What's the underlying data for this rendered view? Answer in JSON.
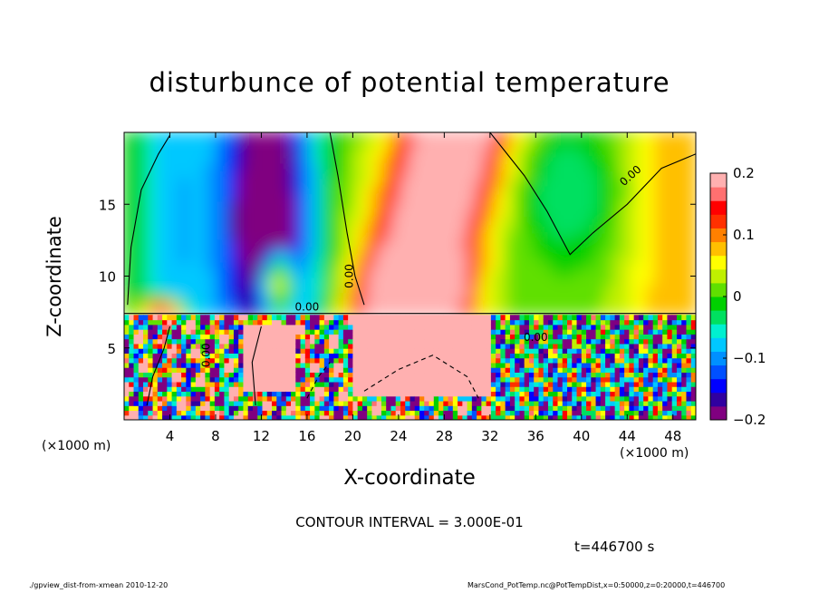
{
  "chart_data": {
    "type": "heatmap",
    "title": "disturbunce of potential temperature",
    "xlabel": "X-coordinate",
    "ylabel": "Z-coordinate",
    "x_unit_label": "(×1000 m)",
    "xlim": [
      0,
      50
    ],
    "ylim": [
      0,
      20
    ],
    "x_ticks": [
      "4",
      "8",
      "12",
      "16",
      "20",
      "24",
      "28",
      "32",
      "36",
      "40",
      "44",
      "48"
    ],
    "x_tick_values": [
      4,
      8,
      12,
      16,
      20,
      24,
      28,
      32,
      36,
      40,
      44,
      48
    ],
    "y_ticks": [
      "5",
      "10",
      "15"
    ],
    "y_tick_values": [
      5,
      10,
      15
    ],
    "colorbar": {
      "min": -0.2,
      "max": 0.2,
      "ticks": [
        "0.2",
        "0.1",
        "0",
        "−0.1",
        "−0.2"
      ],
      "tick_values": [
        0.2,
        0.1,
        0,
        -0.1,
        -0.2
      ],
      "colors": [
        "#800080",
        "#3000a0",
        "#0000ff",
        "#0050ff",
        "#0090ff",
        "#00c8ff",
        "#00f0d0",
        "#00e060",
        "#00d000",
        "#60e000",
        "#c0f000",
        "#ffff00",
        "#ffc000",
        "#ff8000",
        "#ff3000",
        "#ff0000",
        "#ff7070",
        "#ffb0b0"
      ]
    },
    "contour_labels": [
      "0.00",
      "0.00",
      "0.00",
      "0.00",
      "0.00"
    ],
    "contour_interval_text": "CONTOUR INTERVAL = 3.000E-01",
    "time_text": "t=446700 s",
    "footer_left": "./gpview_dist-from-xmean  2010-12-20",
    "footer_right": "MarsCond_PotTemp.nc@PotTempDist,x=0:50000,z=0:20000,t=446700"
  },
  "colors": {
    "text": "#000000",
    "background": "#ffffff"
  }
}
